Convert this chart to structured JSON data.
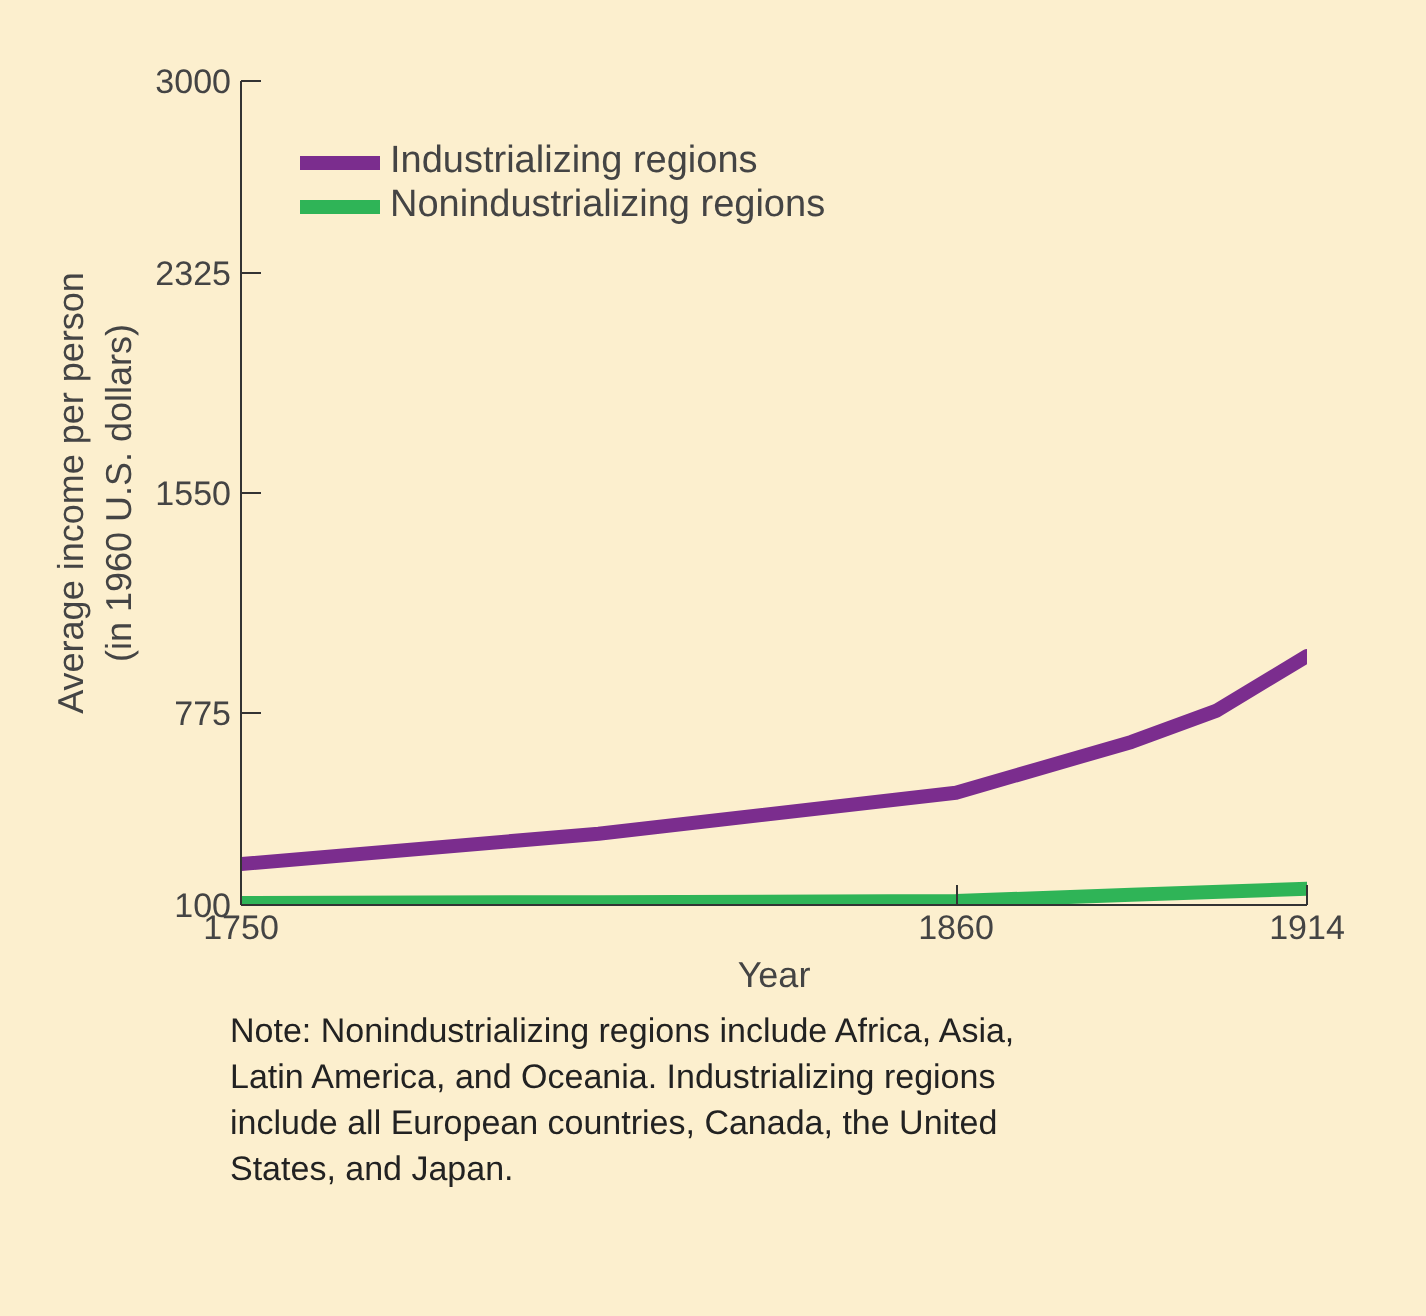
{
  "chart_data": {
    "type": "line",
    "xlabel": "Year",
    "ylabel": "Average income per person\n(in 1960 U.S. dollars)",
    "xlim": [
      1750,
      1914
    ],
    "xticks": [
      1750,
      1860,
      1914
    ],
    "ylim": [
      100,
      3000
    ],
    "yticks": [
      100,
      775,
      1550,
      2325,
      3000
    ],
    "grid": false,
    "legend": "top left",
    "marker": "none",
    "line_style": "solid",
    "series": [
      {
        "name": "Industrializing regions",
        "color": "#7b2d8e",
        "x": [
          1750,
          1805,
          1860,
          1887,
          1900,
          1914
        ],
        "values": [
          244,
          351,
          495,
          674,
          783,
          976
        ]
      },
      {
        "name": "Nonindustrializing regions",
        "color": "#2fb457",
        "x": [
          1750,
          1805,
          1860,
          1887,
          1914
        ],
        "values": [
          107,
          110,
          114,
          136,
          157
        ]
      }
    ],
    "annotations": [
      "Note: Nonindustrializing regions include Africa, Asia, Latin America, and Oceania. Industrializing regions include all European countries, Canada, the United States, and Japan."
    ]
  }
}
